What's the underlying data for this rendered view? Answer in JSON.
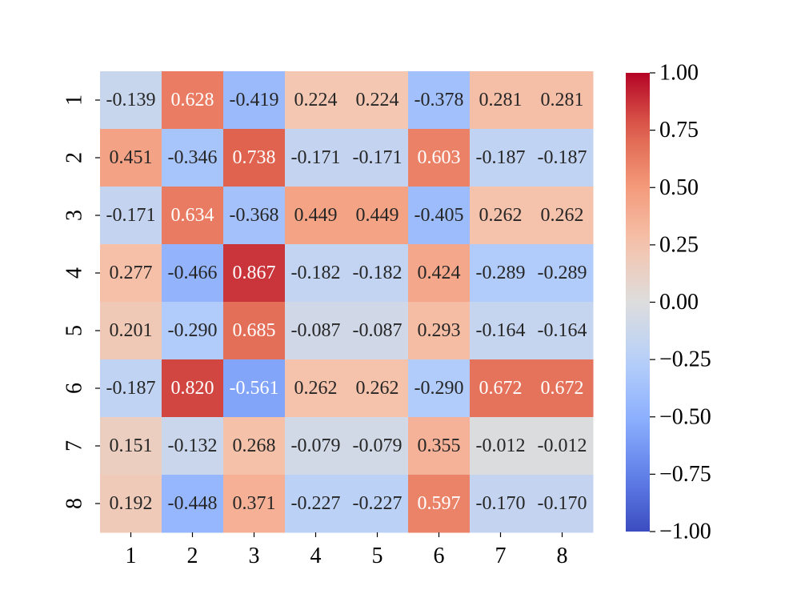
{
  "chart_data": {
    "type": "heatmap",
    "title": "",
    "xlabel": "",
    "ylabel": "",
    "x_categories": [
      "1",
      "2",
      "3",
      "4",
      "5",
      "6",
      "7",
      "8"
    ],
    "y_categories": [
      "1",
      "2",
      "3",
      "4",
      "5",
      "6",
      "7",
      "8"
    ],
    "values": [
      [
        -0.139,
        0.628,
        -0.419,
        0.224,
        0.224,
        -0.378,
        0.281,
        0.281
      ],
      [
        0.451,
        -0.346,
        0.738,
        -0.171,
        -0.171,
        0.603,
        -0.187,
        -0.187
      ],
      [
        -0.171,
        0.634,
        -0.368,
        0.449,
        0.449,
        -0.405,
        0.262,
        0.262
      ],
      [
        0.277,
        -0.466,
        0.867,
        -0.182,
        -0.182,
        0.424,
        -0.289,
        -0.289
      ],
      [
        0.201,
        -0.29,
        0.685,
        -0.087,
        -0.087,
        0.293,
        -0.164,
        -0.164
      ],
      [
        -0.187,
        0.82,
        -0.561,
        0.262,
        0.262,
        -0.29,
        0.672,
        0.672
      ],
      [
        0.151,
        -0.132,
        0.268,
        -0.079,
        -0.079,
        0.355,
        -0.012,
        -0.012
      ],
      [
        0.192,
        -0.448,
        0.371,
        -0.227,
        -0.227,
        0.597,
        -0.17,
        -0.17
      ]
    ],
    "cell_labels": [
      [
        "-0.139",
        "0.628",
        "-0.419",
        "0.224",
        "0.224",
        "-0.378",
        "0.281",
        "0.281"
      ],
      [
        "0.451",
        "-0.346",
        "0.738",
        "-0.171",
        "-0.171",
        "0.603",
        "-0.187",
        "-0.187"
      ],
      [
        "-0.171",
        "0.634",
        "-0.368",
        "0.449",
        "0.449",
        "-0.405",
        "0.262",
        "0.262"
      ],
      [
        "0.277",
        "-0.466",
        "0.867",
        "-0.182",
        "-0.182",
        "0.424",
        "-0.289",
        "-0.289"
      ],
      [
        "0.201",
        "-0.290",
        "0.685",
        "-0.087",
        "-0.087",
        "0.293",
        "-0.164",
        "-0.164"
      ],
      [
        "-0.187",
        "0.820",
        "-0.561",
        "0.262",
        "0.262",
        "-0.290",
        "0.672",
        "0.672"
      ],
      [
        "0.151",
        "-0.132",
        "0.268",
        "-0.079",
        "-0.079",
        "0.355",
        "-0.012",
        "-0.012"
      ],
      [
        "0.192",
        "-0.448",
        "0.371",
        "-0.227",
        "-0.227",
        "0.597",
        "-0.170",
        "-0.170"
      ]
    ],
    "colormap": "coolwarm",
    "vmin": -1.0,
    "vmax": 1.0,
    "colorbar": {
      "ticks": [
        1.0,
        0.75,
        0.5,
        0.25,
        0.0,
        -0.25,
        -0.5,
        -0.75,
        -1.0
      ],
      "tick_labels": [
        "1.00",
        "0.75",
        "0.50",
        "0.25",
        "0.00",
        "−0.25",
        "−0.50",
        "−0.75",
        "−1.00"
      ],
      "placement": "right"
    },
    "colors": {
      "text_dark": "#262626",
      "text_light": "#ffffff",
      "tick": "#000000"
    }
  }
}
